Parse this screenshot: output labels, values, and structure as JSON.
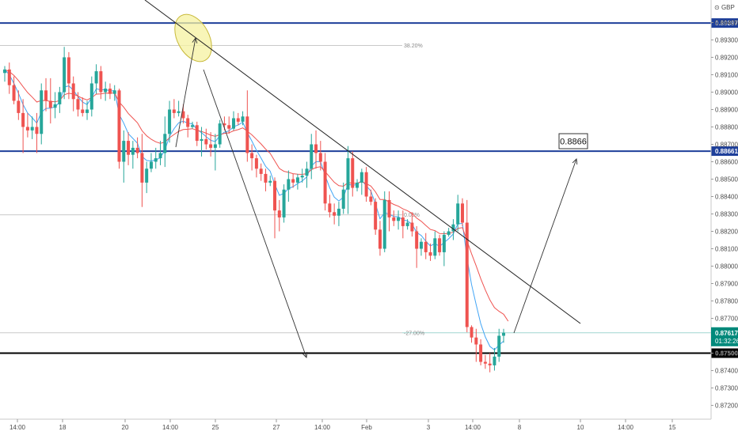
{
  "chart_data": {
    "type": "candlestick",
    "currency_label": "GBP",
    "y_min": 0.87157,
    "y_max": 0.89493,
    "y_ticks": [
      "0.89400",
      "0.89300",
      "0.89200",
      "0.89100",
      "0.89000",
      "0.88900",
      "0.88800",
      "0.88700",
      "0.88600",
      "0.88500",
      "0.88400",
      "0.88300",
      "0.88200",
      "0.88100",
      "0.88000",
      "0.87900",
      "0.87800",
      "0.87700",
      "0.87600",
      "0.87500",
      "0.87400",
      "0.87300",
      "0.87200"
    ],
    "x_ticks": [
      "14:00",
      "18",
      "20",
      "14:00",
      "25",
      "27",
      "14:00",
      "Feb",
      "3",
      "14:00",
      "8",
      "10",
      "14:00",
      "15"
    ],
    "candles": [
      [
        0.8911,
        0.8915,
        0.8906,
        0.8913
      ],
      [
        0.8913,
        0.8917,
        0.8899,
        0.8904
      ],
      [
        0.8904,
        0.8909,
        0.8893,
        0.8895
      ],
      [
        0.8895,
        0.8901,
        0.8884,
        0.8888
      ],
      [
        0.8888,
        0.8896,
        0.8865,
        0.888
      ],
      [
        0.888,
        0.8888,
        0.8874,
        0.8878
      ],
      [
        0.8878,
        0.8886,
        0.8873,
        0.888
      ],
      [
        0.888,
        0.8888,
        0.8865,
        0.8876
      ],
      [
        0.8876,
        0.8905,
        0.887,
        0.8901
      ],
      [
        0.8901,
        0.8908,
        0.8889,
        0.8895
      ],
      [
        0.8895,
        0.8908,
        0.8882,
        0.8891
      ],
      [
        0.8891,
        0.89,
        0.8885,
        0.8893
      ],
      [
        0.8893,
        0.8903,
        0.8888,
        0.89
      ],
      [
        0.89,
        0.8926,
        0.8896,
        0.892
      ],
      [
        0.892,
        0.8923,
        0.8896,
        0.8905
      ],
      [
        0.8905,
        0.8909,
        0.8889,
        0.8896
      ],
      [
        0.8896,
        0.89,
        0.8886,
        0.889
      ],
      [
        0.889,
        0.8897,
        0.8886,
        0.8888
      ],
      [
        0.8888,
        0.8895,
        0.8884,
        0.889
      ],
      [
        0.889,
        0.8909,
        0.8886,
        0.8905
      ],
      [
        0.8905,
        0.8916,
        0.8899,
        0.8912
      ],
      [
        0.8912,
        0.8915,
        0.8896,
        0.89
      ],
      [
        0.89,
        0.8906,
        0.8895,
        0.8902
      ],
      [
        0.8902,
        0.8905,
        0.8896,
        0.8899
      ],
      [
        0.8899,
        0.8904,
        0.8895,
        0.8901
      ],
      [
        0.8901,
        0.8902,
        0.8856,
        0.886
      ],
      [
        0.886,
        0.8878,
        0.8848,
        0.8872
      ],
      [
        0.8872,
        0.8877,
        0.8858,
        0.8864
      ],
      [
        0.8864,
        0.8872,
        0.8856,
        0.8868
      ],
      [
        0.8868,
        0.8874,
        0.8862,
        0.8865
      ],
      [
        0.8865,
        0.8876,
        0.8834,
        0.8848
      ],
      [
        0.8848,
        0.886,
        0.8842,
        0.8856
      ],
      [
        0.8856,
        0.8865,
        0.8854,
        0.886
      ],
      [
        0.886,
        0.8868,
        0.8856,
        0.8862
      ],
      [
        0.8862,
        0.8872,
        0.8858,
        0.8865
      ],
      [
        0.8865,
        0.8886,
        0.8857,
        0.8876
      ],
      [
        0.8876,
        0.8895,
        0.8871,
        0.889
      ],
      [
        0.889,
        0.8896,
        0.8885,
        0.8888
      ],
      [
        0.8888,
        0.8895,
        0.8886,
        0.8889
      ],
      [
        0.8889,
        0.8893,
        0.8882,
        0.8885
      ],
      [
        0.8885,
        0.8887,
        0.8874,
        0.888
      ],
      [
        0.888,
        0.8883,
        0.8879,
        0.8881
      ],
      [
        0.8881,
        0.8883,
        0.8869,
        0.8872
      ],
      [
        0.8872,
        0.888,
        0.8863,
        0.8873
      ],
      [
        0.8873,
        0.8879,
        0.8867,
        0.887
      ],
      [
        0.887,
        0.8877,
        0.8863,
        0.8868
      ],
      [
        0.8868,
        0.8876,
        0.8855,
        0.887
      ],
      [
        0.887,
        0.8884,
        0.8868,
        0.8882
      ],
      [
        0.8882,
        0.8886,
        0.8878,
        0.8881
      ],
      [
        0.8881,
        0.8886,
        0.8876,
        0.8879
      ],
      [
        0.8879,
        0.8889,
        0.8878,
        0.8885
      ],
      [
        0.8885,
        0.8888,
        0.8881,
        0.8883
      ],
      [
        0.8883,
        0.8889,
        0.8881,
        0.8886
      ],
      [
        0.8886,
        0.8901,
        0.886,
        0.8865
      ],
      [
        0.8865,
        0.887,
        0.8855,
        0.8862
      ],
      [
        0.8862,
        0.8864,
        0.8851,
        0.8856
      ],
      [
        0.8856,
        0.8859,
        0.8849,
        0.8853
      ],
      [
        0.8853,
        0.8856,
        0.8843,
        0.8848
      ],
      [
        0.8848,
        0.8852,
        0.8846,
        0.8849
      ],
      [
        0.8849,
        0.8851,
        0.8816,
        0.8832
      ],
      [
        0.8832,
        0.8838,
        0.882,
        0.8828
      ],
      [
        0.8828,
        0.8847,
        0.8825,
        0.8844
      ],
      [
        0.8844,
        0.8855,
        0.8837,
        0.885
      ],
      [
        0.885,
        0.8853,
        0.8845,
        0.8848
      ],
      [
        0.8848,
        0.8853,
        0.8844,
        0.8851
      ],
      [
        0.8851,
        0.8856,
        0.8848,
        0.8852
      ],
      [
        0.8852,
        0.886,
        0.8845,
        0.8856
      ],
      [
        0.8856,
        0.8876,
        0.885,
        0.887
      ],
      [
        0.887,
        0.8878,
        0.8856,
        0.8865
      ],
      [
        0.8865,
        0.8872,
        0.8855,
        0.886
      ],
      [
        0.886,
        0.8865,
        0.8832,
        0.8836
      ],
      [
        0.8836,
        0.8841,
        0.8828,
        0.8831
      ],
      [
        0.8831,
        0.8836,
        0.8824,
        0.8829
      ],
      [
        0.8829,
        0.8837,
        0.8823,
        0.8833
      ],
      [
        0.8833,
        0.8848,
        0.883,
        0.8844
      ],
      [
        0.8844,
        0.8869,
        0.883,
        0.8862
      ],
      [
        0.8862,
        0.8866,
        0.884,
        0.8845
      ],
      [
        0.8845,
        0.885,
        0.8843,
        0.8848
      ],
      [
        0.8848,
        0.8856,
        0.8841,
        0.8854
      ],
      [
        0.8854,
        0.8857,
        0.8837,
        0.884
      ],
      [
        0.884,
        0.8844,
        0.8835,
        0.8837
      ],
      [
        0.8837,
        0.8839,
        0.8818,
        0.8821
      ],
      [
        0.8821,
        0.8826,
        0.8806,
        0.881
      ],
      [
        0.881,
        0.8843,
        0.8808,
        0.8838
      ],
      [
        0.8838,
        0.8843,
        0.882,
        0.8828
      ],
      [
        0.8828,
        0.8832,
        0.8823,
        0.8826
      ],
      [
        0.8826,
        0.8832,
        0.8821,
        0.8828
      ],
      [
        0.8828,
        0.8832,
        0.8816,
        0.8823
      ],
      [
        0.8823,
        0.8827,
        0.8821,
        0.8825
      ],
      [
        0.8825,
        0.8831,
        0.8817,
        0.882
      ],
      [
        0.882,
        0.8823,
        0.8799,
        0.881
      ],
      [
        0.881,
        0.8816,
        0.8806,
        0.8814
      ],
      [
        0.8814,
        0.8819,
        0.8804,
        0.8808
      ],
      [
        0.8808,
        0.8813,
        0.8803,
        0.8806
      ],
      [
        0.8806,
        0.882,
        0.8804,
        0.8816
      ],
      [
        0.8816,
        0.8818,
        0.8806,
        0.8808
      ],
      [
        0.8808,
        0.882,
        0.88,
        0.8818
      ],
      [
        0.8818,
        0.8822,
        0.8817,
        0.882
      ],
      [
        0.882,
        0.8827,
        0.8815,
        0.8824
      ],
      [
        0.8824,
        0.8841,
        0.882,
        0.8836
      ],
      [
        0.8836,
        0.8839,
        0.8823,
        0.8825
      ],
      [
        0.8825,
        0.8838,
        0.8762,
        0.8765
      ],
      [
        0.8765,
        0.8766,
        0.8756,
        0.8759
      ],
      [
        0.8759,
        0.8764,
        0.8745,
        0.8755
      ],
      [
        0.8755,
        0.8758,
        0.8743,
        0.8745
      ],
      [
        0.8745,
        0.8749,
        0.8741,
        0.8744
      ],
      [
        0.8744,
        0.875,
        0.8739,
        0.8743
      ],
      [
        0.8743,
        0.8753,
        0.874,
        0.8748
      ],
      [
        0.8748,
        0.8764,
        0.8745,
        0.876
      ],
      [
        0.876,
        0.8764,
        0.8756,
        0.87617
      ]
    ],
    "horizontal_levels": [
      {
        "price": 0.89397,
        "label": "0.89397",
        "color": "#1e3f9a"
      },
      {
        "price": 0.88661,
        "label": "0.88661",
        "color": "#1e3f9a"
      },
      {
        "price": 0.875,
        "label": "0.87500",
        "color": "#000000"
      }
    ],
    "fib_levels": [
      {
        "label": "38.20%",
        "price": 0.89268
      },
      {
        "label": "0.00%",
        "price": 0.88295
      },
      {
        "label": "-27.00%",
        "price": 0.87617
      }
    ],
    "current_price": {
      "label": "0.87617",
      "countdown": "01:32:26",
      "color": "#00897b"
    },
    "annotation_box": {
      "text": "0.8866"
    },
    "colors": {
      "bull": "#26a69a",
      "bear": "#ef5350",
      "ema_fast": "#42a5f5",
      "ema_slow": "#ef5350",
      "trendline": "#222222",
      "ellipse_fill": "#f6f1a0"
    }
  }
}
